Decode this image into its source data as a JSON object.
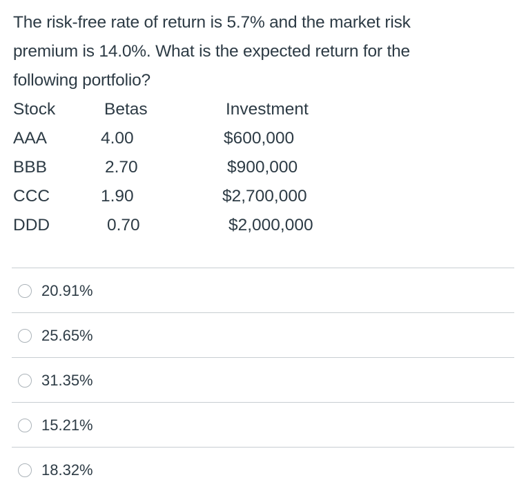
{
  "question": {
    "lines": [
      "The risk-free rate of return is 5.7% and the market risk",
      "premium is 14.0%. What is the expected return for the",
      "following portfolio?"
    ]
  },
  "table": {
    "headers": [
      "Stock",
      "Betas",
      "Investment"
    ],
    "rows": [
      [
        "AAA",
        "4.00",
        "$600,000"
      ],
      [
        "BBB",
        "2.70",
        "$900,000"
      ],
      [
        "CCC",
        "1.90",
        "$2,700,000"
      ],
      [
        "DDD",
        "0.70",
        "$2,000,000"
      ]
    ]
  },
  "answers": [
    {
      "label": "20.91%"
    },
    {
      "label": "25.65%"
    },
    {
      "label": "31.35%"
    },
    {
      "label": "15.21%"
    },
    {
      "label": "18.32%"
    }
  ]
}
